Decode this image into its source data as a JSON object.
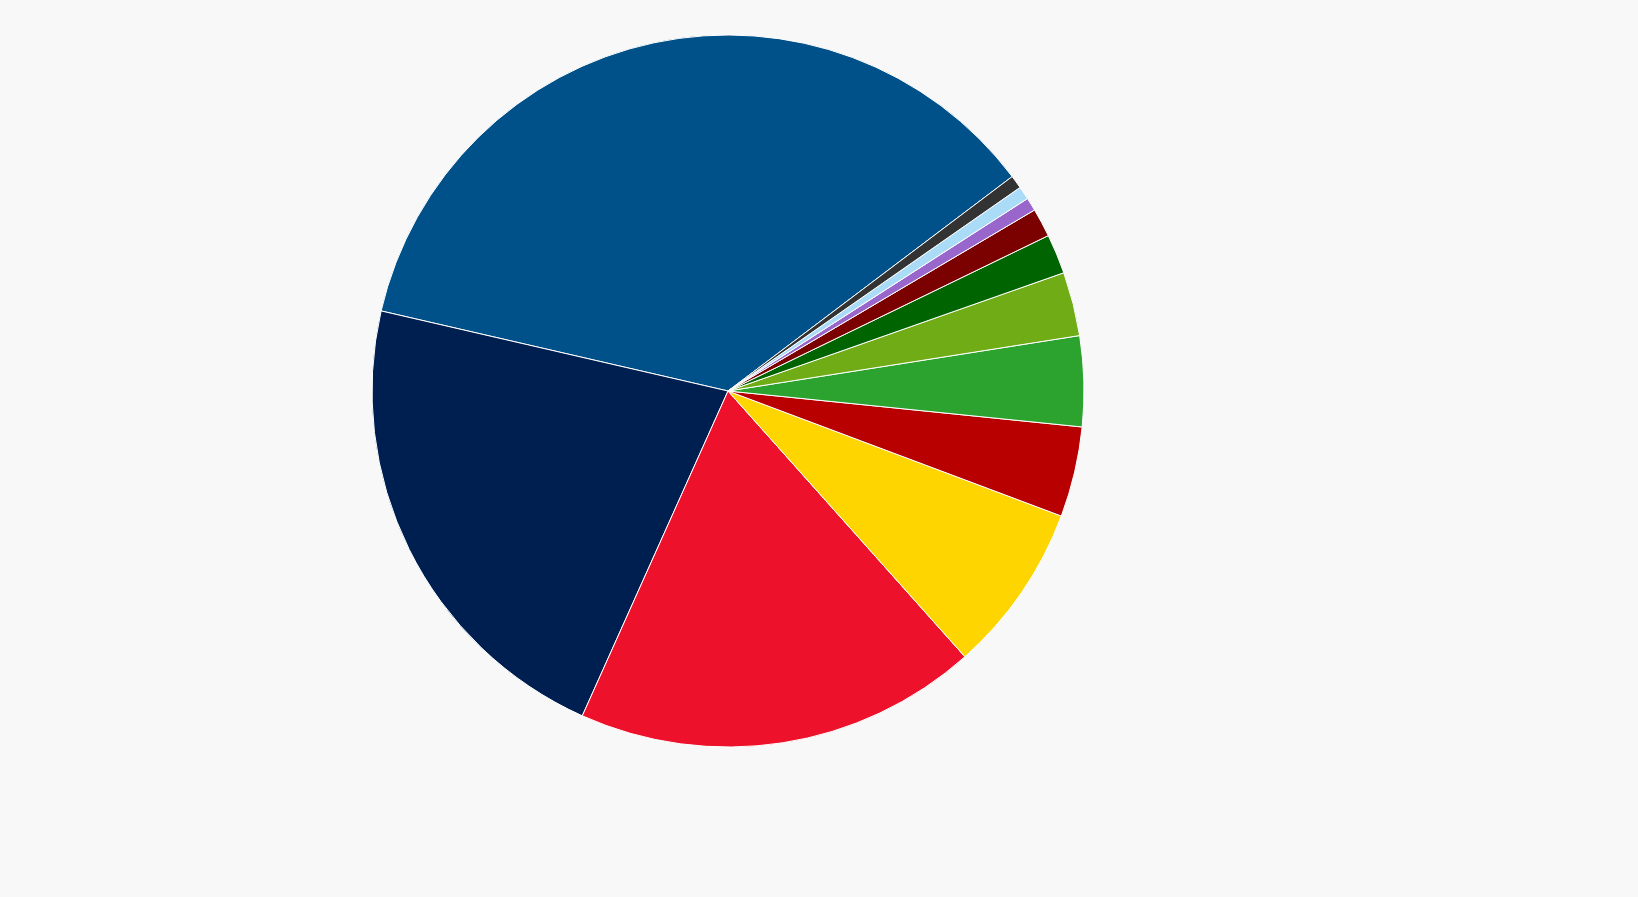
{
  "chart_data": {
    "type": "pie",
    "categories": [
      null,
      null,
      null,
      null,
      null,
      null,
      null,
      null,
      null,
      null,
      null,
      null
    ],
    "values": [
      36.1,
      21.9,
      18.3,
      7.7,
      4.1,
      4.1,
      2.9,
      1.8,
      1.3,
      0.6,
      0.6,
      0.6
    ],
    "colors": [
      "#00508a",
      "#001f51",
      "#ed112b",
      "#ffd500",
      "#b90000",
      "#2ca22f",
      "#6fac16",
      "#006400",
      "#7b0000",
      "#9966cc",
      "#aadcf8",
      "#333333"
    ]
  }
}
